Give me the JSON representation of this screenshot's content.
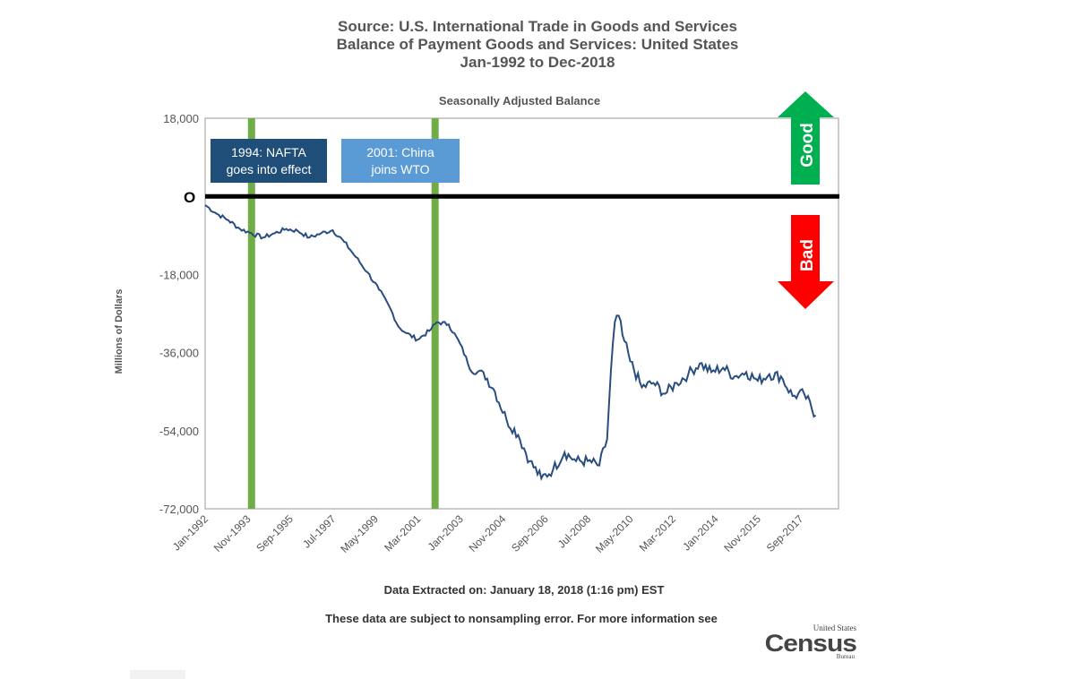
{
  "header": {
    "line1": "Source: U.S. International Trade in Goods and Services",
    "line2": "Balance of Payment Goods and Services: United States",
    "line3": "Jan-1992 to Dec-2018"
  },
  "footer": {
    "extracted": "Data Extracted on: January 18, 2018 (1:16 pm) EST",
    "note": "These data are subject to nonsampling error. For more information see"
  },
  "logo": {
    "line1": "United States",
    "line2": "Census",
    "line3": "Bureau"
  },
  "annotations": {
    "nafta": {
      "line1": "1994:  NAFTA",
      "line2": "goes into effect",
      "color": "#1f4e79"
    },
    "china": {
      "line1": "2001:  China",
      "line2": "joins WTO",
      "color": "#5b9bd5"
    },
    "zero_label": "O",
    "good_label": "Good",
    "bad_label": "Bad",
    "good_color": "#00b050",
    "bad_color": "#ff0000",
    "marker_color": "#70ad47"
  },
  "chart_data": {
    "type": "line",
    "title": "Seasonally Adjusted Balance",
    "xlabel": "",
    "ylabel": "Millions of Dollars",
    "ylim": [
      -72000,
      18000
    ],
    "yticks": [
      "18,000",
      "-18,000",
      "-36,000",
      "-54,000",
      "-72,000"
    ],
    "ytick_values": [
      18000,
      -18000,
      -36000,
      -54000,
      -72000
    ],
    "xticks": [
      "Jan-1992",
      "Nov-1993",
      "Sep-1995",
      "Jul-1997",
      "May-1999",
      "Mar-2001",
      "Jan-2003",
      "Nov-2004",
      "Sep-2006",
      "Jul-2008",
      "May-2010",
      "Mar-2012",
      "Jan-2014",
      "Nov-2015",
      "Sep-2017"
    ],
    "xtick_months": [
      0,
      22,
      44,
      66,
      88,
      110,
      132,
      154,
      176,
      198,
      220,
      242,
      264,
      286,
      308
    ],
    "x_start": "Jan-1992",
    "x_end": "Dec-2018",
    "zero_line": 0,
    "events": [
      {
        "label": "1994: NAFTA goes into effect",
        "date": "Jan-1994",
        "month_index": 24
      },
      {
        "label": "2001: China joins WTO",
        "date": "Dec-2001",
        "month_index": 119
      }
    ],
    "series": [
      {
        "color": "#2a4d80",
        "points": [
          [
            0,
            -2000
          ],
          [
            6,
            -4000
          ],
          [
            12,
            -5500
          ],
          [
            18,
            -7500
          ],
          [
            24,
            -8500
          ],
          [
            30,
            -9500
          ],
          [
            36,
            -8500
          ],
          [
            42,
            -7500
          ],
          [
            48,
            -8000
          ],
          [
            54,
            -9500
          ],
          [
            60,
            -8500
          ],
          [
            66,
            -7800
          ],
          [
            72,
            -10500
          ],
          [
            78,
            -14000
          ],
          [
            84,
            -17500
          ],
          [
            90,
            -21500
          ],
          [
            96,
            -26000
          ],
          [
            100,
            -30000
          ],
          [
            104,
            -31500
          ],
          [
            110,
            -33000
          ],
          [
            116,
            -31000
          ],
          [
            120,
            -29000
          ],
          [
            126,
            -29500
          ],
          [
            132,
            -34000
          ],
          [
            138,
            -40500
          ],
          [
            144,
            -40500
          ],
          [
            150,
            -45000
          ],
          [
            156,
            -51500
          ],
          [
            162,
            -55000
          ],
          [
            168,
            -61000
          ],
          [
            174,
            -65000
          ],
          [
            180,
            -63000
          ],
          [
            186,
            -59000
          ],
          [
            192,
            -61000
          ],
          [
            198,
            -61000
          ],
          [
            204,
            -62000
          ],
          [
            208,
            -56000
          ],
          [
            210,
            -40000
          ],
          [
            212,
            -29000
          ],
          [
            214,
            -27500
          ],
          [
            216,
            -32000
          ],
          [
            220,
            -38000
          ],
          [
            226,
            -44000
          ],
          [
            232,
            -43000
          ],
          [
            238,
            -45500
          ],
          [
            244,
            -43000
          ],
          [
            250,
            -41000
          ],
          [
            256,
            -38500
          ],
          [
            262,
            -40500
          ],
          [
            268,
            -39500
          ],
          [
            274,
            -41500
          ],
          [
            280,
            -40500
          ],
          [
            286,
            -42500
          ],
          [
            292,
            -41000
          ],
          [
            298,
            -41500
          ],
          [
            304,
            -46000
          ],
          [
            310,
            -45500
          ],
          [
            316,
            -50500
          ]
        ]
      }
    ]
  }
}
